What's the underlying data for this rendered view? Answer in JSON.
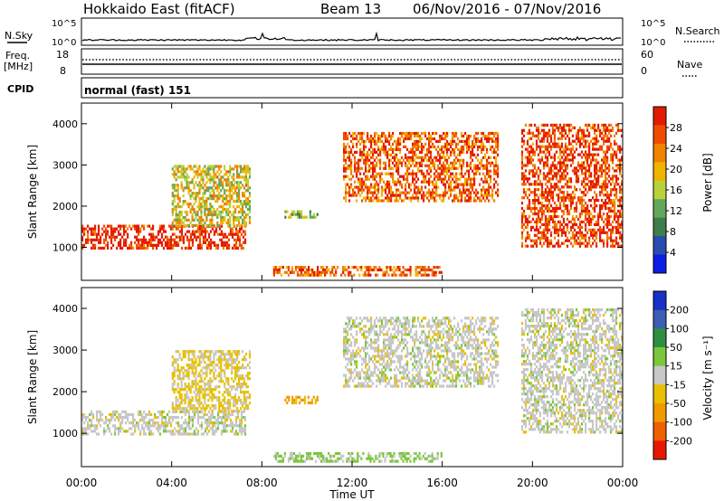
{
  "header": {
    "station": "Hokkaido East (fitACF)",
    "beam": "Beam 13",
    "date_range": "06/Nov/2016 - 07/Nov/2016"
  },
  "noise_panel": {
    "label": "N.Sky",
    "right_label": "N.Search",
    "tick_top": "10^5",
    "tick_bottom": "10^0"
  },
  "freq_panel": {
    "label": "Freq.",
    "unit": "[MHz]",
    "left_top": "18",
    "left_bottom": "8",
    "right_top": "60",
    "right_bottom": "0",
    "right_label": "Nave"
  },
  "cpid_panel": {
    "label": "CPID",
    "mode": "normal (fast) 151"
  },
  "power_panel": {
    "ylabel": "Slant Range [km]",
    "colorbar_label": "Power [dB]"
  },
  "velocity_panel": {
    "ylabel": "Slant Range [km]",
    "colorbar_label": "Velocity [m s⁻¹]"
  },
  "x_axis": {
    "label": "Time UT"
  },
  "colors": {
    "power_scale": [
      "#0a1ee6",
      "#2a4bb0",
      "#3f7d4a",
      "#62a85a",
      "#b9d23c",
      "#f0b400",
      "#f08200",
      "#ef4c00",
      "#e41a00"
    ],
    "velocity_scale": [
      "#1630c8",
      "#3a5fb0",
      "#2f8f40",
      "#7ac83a",
      "#c7c7c7",
      "#e8c000",
      "#f09a00",
      "#ef6000",
      "#e81800"
    ]
  },
  "chart_data": [
    {
      "type": "heatmap",
      "title": "Power",
      "x_unit": "hours UT",
      "xlim": [
        0,
        24
      ],
      "ylim": [
        200,
        4500
      ],
      "yticks": [
        1000,
        2000,
        3000,
        4000
      ],
      "x_ticks": [
        "00:00",
        "04:00",
        "08:00",
        "12:00",
        "16:00",
        "20:00",
        "00:00"
      ],
      "colorbar": {
        "label": "Power [dB]",
        "range": [
          0,
          32
        ],
        "ticks": [
          4,
          8,
          12,
          16,
          20,
          24,
          28
        ]
      },
      "echo_regions": [
        {
          "t_start": 0.0,
          "t_end": 7.3,
          "range_km": [
            950,
            1550
          ],
          "power_db": 30
        },
        {
          "t_start": 4.0,
          "t_end": 7.5,
          "range_km": [
            1500,
            3000
          ],
          "power_db": 18
        },
        {
          "t_start": 9.0,
          "t_end": 10.5,
          "range_km": [
            1700,
            1900
          ],
          "power_db": 14
        },
        {
          "t_start": 11.6,
          "t_end": 18.5,
          "range_km": [
            2100,
            3800
          ],
          "power_db": 26
        },
        {
          "t_start": 19.5,
          "t_end": 24.0,
          "range_km": [
            1000,
            4000
          ],
          "power_db": 28
        },
        {
          "t_start": 8.5,
          "t_end": 16.0,
          "range_km": [
            300,
            550
          ],
          "power_db": 26
        }
      ]
    },
    {
      "type": "heatmap",
      "title": "Velocity",
      "x_unit": "hours UT",
      "xlim": [
        0,
        24
      ],
      "ylim": [
        200,
        4500
      ],
      "yticks": [
        1000,
        2000,
        3000,
        4000
      ],
      "x_ticks": [
        "00:00",
        "04:00",
        "08:00",
        "12:00",
        "16:00",
        "20:00",
        "00:00"
      ],
      "colorbar": {
        "label": "Velocity [m s⁻¹]",
        "range": [
          -250,
          250
        ],
        "ticks": [
          200,
          100,
          50,
          15,
          -15,
          -50,
          -100,
          -200
        ]
      },
      "echo_regions": [
        {
          "t_start": 0.0,
          "t_end": 7.3,
          "range_km": [
            950,
            1550
          ],
          "velocity": 0
        },
        {
          "t_start": 4.0,
          "t_end": 7.5,
          "range_km": [
            1500,
            3000
          ],
          "velocity": -20
        },
        {
          "t_start": 9.0,
          "t_end": 10.5,
          "range_km": [
            1700,
            1900
          ],
          "velocity": -60
        },
        {
          "t_start": 11.6,
          "t_end": 18.5,
          "range_km": [
            2100,
            3800
          ],
          "velocity": 0
        },
        {
          "t_start": 19.5,
          "t_end": 24.0,
          "range_km": [
            1000,
            4000
          ],
          "velocity": 0
        },
        {
          "t_start": 8.5,
          "t_end": 16.0,
          "range_km": [
            300,
            550
          ],
          "velocity": 20
        }
      ]
    }
  ]
}
